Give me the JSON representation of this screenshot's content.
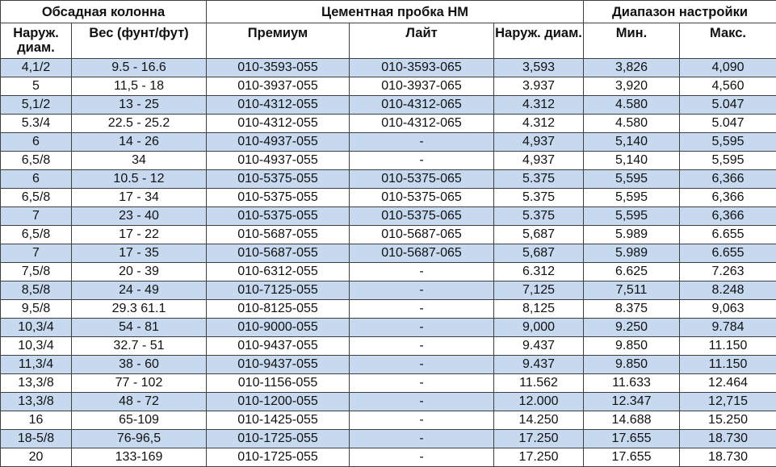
{
  "header": {
    "groups": {
      "casing": "Обсадная колонна",
      "cement_plug": "Цементная пробка HM",
      "setting_range": "Диапазон настройки"
    },
    "columns": {
      "casing_od": "Наруж. диам.",
      "weight": "Вес (фунт/фут)",
      "premium": "Премиум",
      "lite": "Лайт",
      "plug_od": "Наруж. диам.",
      "min": "Мин.",
      "max": "Макс."
    }
  },
  "rows": [
    {
      "od": "4,1/2",
      "weight": "9.5 - 16.6",
      "premium": "010-3593-055",
      "lite": "010-3593-065",
      "plug_od": "3,593",
      "min": "3,826",
      "max": "4,090"
    },
    {
      "od": "5",
      "weight": "11,5 - 18",
      "premium": "010-3937-055",
      "lite": "010-3937-065",
      "plug_od": "3.937",
      "min": "3,920",
      "max": "4,560"
    },
    {
      "od": "5,1/2",
      "weight": "13 - 25",
      "premium": "010-4312-055",
      "lite": "010-4312-065",
      "plug_od": "4.312",
      "min": "4.580",
      "max": "5.047"
    },
    {
      "od": "5.3/4",
      "weight": "22.5 - 25.2",
      "premium": "010-4312-055",
      "lite": "010-4312-065",
      "plug_od": "4.312",
      "min": "4.580",
      "max": "5.047"
    },
    {
      "od": "6",
      "weight": "14 - 26",
      "premium": "010-4937-055",
      "lite": "-",
      "plug_od": "4,937",
      "min": "5,140",
      "max": "5,595"
    },
    {
      "od": "6,5/8",
      "weight": "34",
      "premium": "010-4937-055",
      "lite": "-",
      "plug_od": "4,937",
      "min": "5,140",
      "max": "5,595"
    },
    {
      "od": "6",
      "weight": "10.5 - 12",
      "premium": "010-5375-055",
      "lite": "010-5375-065",
      "plug_od": "5.375",
      "min": "5,595",
      "max": "6,366"
    },
    {
      "od": "6,5/8",
      "weight": "17 - 34",
      "premium": "010-5375-055",
      "lite": "010-5375-065",
      "plug_od": "5.375",
      "min": "5,595",
      "max": "6,366"
    },
    {
      "od": "7",
      "weight": "23 - 40",
      "premium": "010-5375-055",
      "lite": "010-5375-065",
      "plug_od": "5.375",
      "min": "5,595",
      "max": "6,366"
    },
    {
      "od": "6,5/8",
      "weight": "17 - 22",
      "premium": "010-5687-055",
      "lite": "010-5687-065",
      "plug_od": "5,687",
      "min": "5.989",
      "max": "6.655"
    },
    {
      "od": "7",
      "weight": "17 - 35",
      "premium": "010-5687-055",
      "lite": "010-5687-065",
      "plug_od": "5,687",
      "min": "5.989",
      "max": "6.655"
    },
    {
      "od": "7,5/8",
      "weight": "20 - 39",
      "premium": "010-6312-055",
      "lite": "-",
      "plug_od": "6.312",
      "min": "6.625",
      "max": "7.263"
    },
    {
      "od": "8,5/8",
      "weight": "24 - 49",
      "premium": "010-7125-055",
      "lite": "-",
      "plug_od": "7,125",
      "min": "7,511",
      "max": "8.248"
    },
    {
      "od": "9,5/8",
      "weight": "29.3 61.1",
      "premium": "010-8125-055",
      "lite": "-",
      "plug_od": "8,125",
      "min": "8.375",
      "max": "9,063"
    },
    {
      "od": "10,3/4",
      "weight": "54 - 81",
      "premium": "010-9000-055",
      "lite": "-",
      "plug_od": "9,000",
      "min": "9.250",
      "max": "9.784"
    },
    {
      "od": "10,3/4",
      "weight": "32.7 - 51",
      "premium": "010-9437-055",
      "lite": "-",
      "plug_od": "9.437",
      "min": "9.850",
      "max": "11.150"
    },
    {
      "od": "11,3/4",
      "weight": "38 - 60",
      "premium": "010-9437-055",
      "lite": "-",
      "plug_od": "9.437",
      "min": "9.850",
      "max": "11.150"
    },
    {
      "od": "13,3/8",
      "weight": "77 - 102",
      "premium": "010-1156-055",
      "lite": "-",
      "plug_od": "11.562",
      "min": "11.633",
      "max": "12.464"
    },
    {
      "od": "13,3/8",
      "weight": "48 - 72",
      "premium": "010-1200-055",
      "lite": "-",
      "plug_od": "12.000",
      "min": "12.347",
      "max": "12,715"
    },
    {
      "od": "16",
      "weight": "65-109",
      "premium": "010-1425-055",
      "lite": "-",
      "plug_od": "14.250",
      "min": "14.688",
      "max": "15.250"
    },
    {
      "od": "18-5/8",
      "weight": "76-96,5",
      "premium": "010-1725-055",
      "lite": "-",
      "plug_od": "17.250",
      "min": "17.655",
      "max": "18.730"
    },
    {
      "od": "20",
      "weight": "133-169",
      "premium": "010-1725-055",
      "lite": "-",
      "plug_od": "17.250",
      "min": "17.655",
      "max": "18.730"
    }
  ]
}
